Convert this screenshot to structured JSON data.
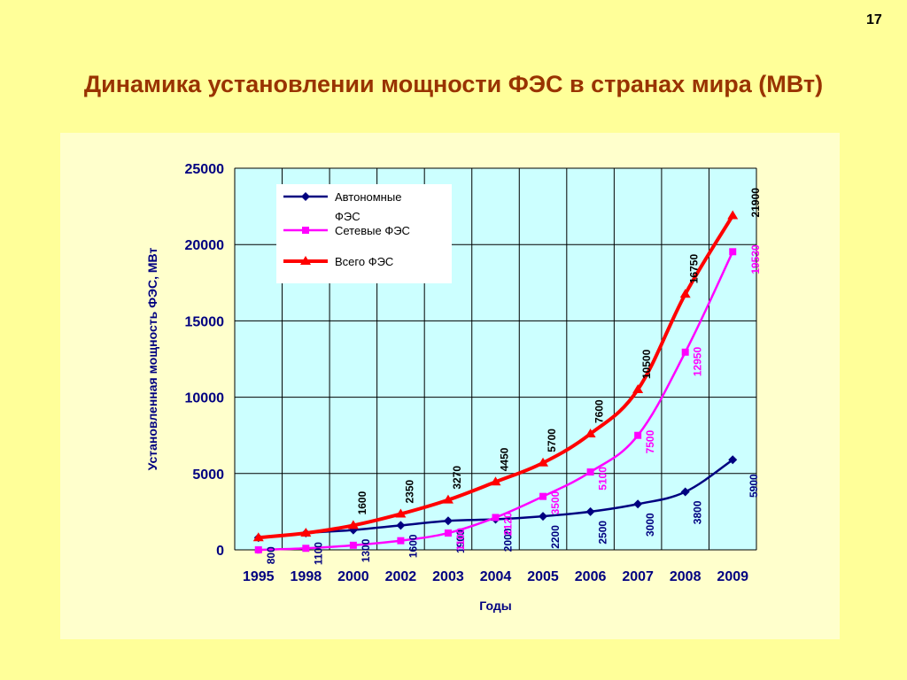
{
  "slide": {
    "number": "17",
    "title": "Динамика установлении мощности ФЭС в странах мира (МВт)"
  },
  "colors": {
    "background": "#ffff99",
    "panel": "#ffffcc",
    "plot_area": "#ccffff",
    "title": "#993300",
    "axis_text": "#000080",
    "autonomous": "#000080",
    "grid_connected": "#ff00ff",
    "total": "#ff0000"
  },
  "chart_data": {
    "type": "line",
    "title": "",
    "xlabel": "Годы",
    "ylabel": "Установленная мощность ФЭС, МВт",
    "ylim": [
      0,
      25000
    ],
    "yticks": [
      "0",
      "5000",
      "10000",
      "15000",
      "20000",
      "25000"
    ],
    "categories": [
      "1995",
      "1998",
      "2000",
      "2002",
      "2003",
      "2004",
      "2005",
      "2006",
      "2007",
      "2008",
      "2009"
    ],
    "grid": true,
    "legend_position": "top-left",
    "series": [
      {
        "name": "Автономные ФЭС",
        "legend_lines": [
          "Автономные",
          "ФЭС"
        ],
        "marker": "diamond",
        "values": [
          800,
          1100,
          1300,
          1600,
          1900,
          2000,
          2200,
          2500,
          3000,
          3800,
          5900
        ],
        "labels": [
          "800",
          "1100",
          "1300",
          "1600",
          "1900",
          "2000",
          "2200",
          "2500",
          "3000",
          "3800",
          "5900"
        ]
      },
      {
        "name": "Сетевые ФЭС",
        "legend_lines": [
          "Сетевые ФЭС"
        ],
        "marker": "square",
        "values": [
          0,
          100,
          300,
          600,
          1100,
          2120,
          3500,
          5100,
          7500,
          12950,
          19530
        ],
        "labels": [
          "0",
          "",
          "",
          "",
          "1100",
          "2120",
          "3500",
          "5100",
          "7500",
          "12950",
          "19530"
        ]
      },
      {
        "name": "Всего ФЭС",
        "legend_lines": [
          "Всего ФЭС"
        ],
        "marker": "triangle",
        "values": [
          800,
          1100,
          1600,
          2350,
          3270,
          4450,
          5700,
          7600,
          10500,
          16750,
          21900
        ],
        "labels": [
          "",
          "",
          "1600",
          "2350",
          "3270",
          "4450",
          "5700",
          "7600",
          "10500",
          "16750",
          "21900"
        ]
      }
    ]
  }
}
